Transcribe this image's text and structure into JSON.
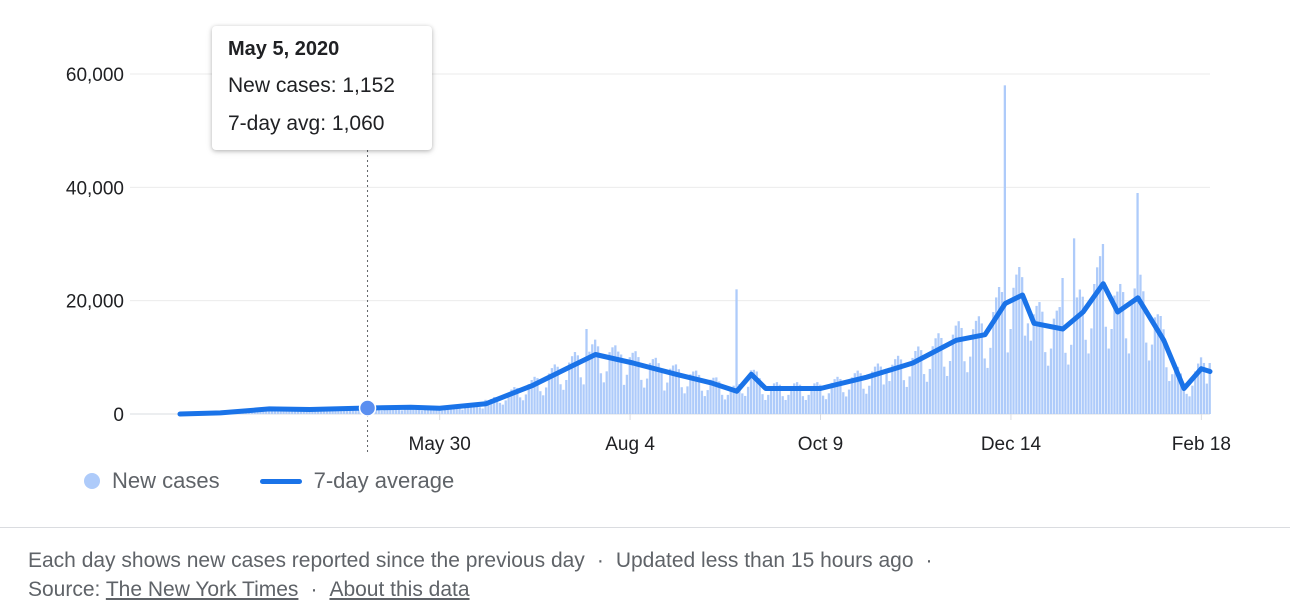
{
  "chart_data": {
    "type": "bar",
    "ylim": [
      0,
      60000
    ],
    "y_ticks": [
      "0",
      "20,000",
      "40,000",
      "60,000"
    ],
    "x_tick_labels": [
      "May 30",
      "Aug 4",
      "Oct 9",
      "Dec 14",
      "Feb 18"
    ],
    "x_range": [
      "2020-03-01",
      "2021-02-21"
    ],
    "grid": true,
    "series": [
      {
        "name": "New cases",
        "type": "bar",
        "color": "#aecbfa",
        "points": [
          [
            "2020-03-01",
            0
          ],
          [
            "2020-03-15",
            200
          ],
          [
            "2020-04-01",
            700
          ],
          [
            "2020-04-15",
            1000
          ],
          [
            "2020-05-05",
            1152
          ],
          [
            "2020-05-30",
            1200
          ],
          [
            "2020-06-15",
            2500
          ],
          [
            "2020-06-30",
            5000
          ],
          [
            "2020-07-15",
            9000
          ],
          [
            "2020-07-20",
            15000
          ],
          [
            "2020-08-01",
            10500
          ],
          [
            "2020-08-15",
            8000
          ],
          [
            "2020-09-01",
            6000
          ],
          [
            "2020-09-10",
            22000
          ],
          [
            "2020-09-15",
            4500
          ],
          [
            "2020-10-09",
            4800
          ],
          [
            "2020-11-01",
            8000
          ],
          [
            "2020-11-20",
            13000
          ],
          [
            "2020-12-10",
            18000
          ],
          [
            "2020-12-12",
            58000
          ],
          [
            "2020-12-20",
            16000
          ],
          [
            "2021-01-01",
            24000
          ],
          [
            "2021-01-05",
            31000
          ],
          [
            "2021-01-15",
            30000
          ],
          [
            "2021-01-25",
            20000
          ],
          [
            "2021-01-27",
            39000
          ],
          [
            "2021-02-05",
            12000
          ],
          [
            "2021-02-15",
            5000
          ],
          [
            "2021-02-21",
            9000
          ]
        ]
      },
      {
        "name": "7-day average",
        "type": "line",
        "color": "#1a73e8",
        "points": [
          [
            "2020-03-01",
            0
          ],
          [
            "2020-03-15",
            200
          ],
          [
            "2020-04-01",
            900
          ],
          [
            "2020-04-15",
            800
          ],
          [
            "2020-05-05",
            1060
          ],
          [
            "2020-05-20",
            1200
          ],
          [
            "2020-05-30",
            1000
          ],
          [
            "2020-06-15",
            1800
          ],
          [
            "2020-07-01",
            5000
          ],
          [
            "2020-07-15",
            8500
          ],
          [
            "2020-07-23",
            10500
          ],
          [
            "2020-08-05",
            9000
          ],
          [
            "2020-08-20",
            7000
          ],
          [
            "2020-09-01",
            5500
          ],
          [
            "2020-09-10",
            4000
          ],
          [
            "2020-09-15",
            7000
          ],
          [
            "2020-09-20",
            4500
          ],
          [
            "2020-10-09",
            4500
          ],
          [
            "2020-10-25",
            6500
          ],
          [
            "2020-11-10",
            9000
          ],
          [
            "2020-11-25",
            13000
          ],
          [
            "2020-12-05",
            14000
          ],
          [
            "2020-12-12",
            19500
          ],
          [
            "2020-12-18",
            21000
          ],
          [
            "2020-12-22",
            16000
          ],
          [
            "2021-01-01",
            15000
          ],
          [
            "2021-01-08",
            18000
          ],
          [
            "2021-01-15",
            23000
          ],
          [
            "2021-01-20",
            18000
          ],
          [
            "2021-01-27",
            20500
          ],
          [
            "2021-02-05",
            13000
          ],
          [
            "2021-02-12",
            4500
          ],
          [
            "2021-02-18",
            8000
          ],
          [
            "2021-02-21",
            7500
          ]
        ]
      }
    ]
  },
  "tooltip": {
    "date": "May 5, 2020",
    "new_cases": "New cases: 1,152",
    "avg": "7-day avg: 1,060",
    "anchor_date": "2020-05-05",
    "anchor_value": 1060
  },
  "legend": {
    "new_cases": "New cases",
    "avg": "7-day average"
  },
  "footer": {
    "line1": "Each day shows new cases reported since the previous day",
    "updated": "Updated less than 15 hours ago",
    "source_label": "Source:",
    "source_link": "The New York Times",
    "about_link": "About this data",
    "sep": "·"
  },
  "colors": {
    "bar": "#aecbfa",
    "line": "#1a73e8",
    "grid": "#ebebeb"
  }
}
